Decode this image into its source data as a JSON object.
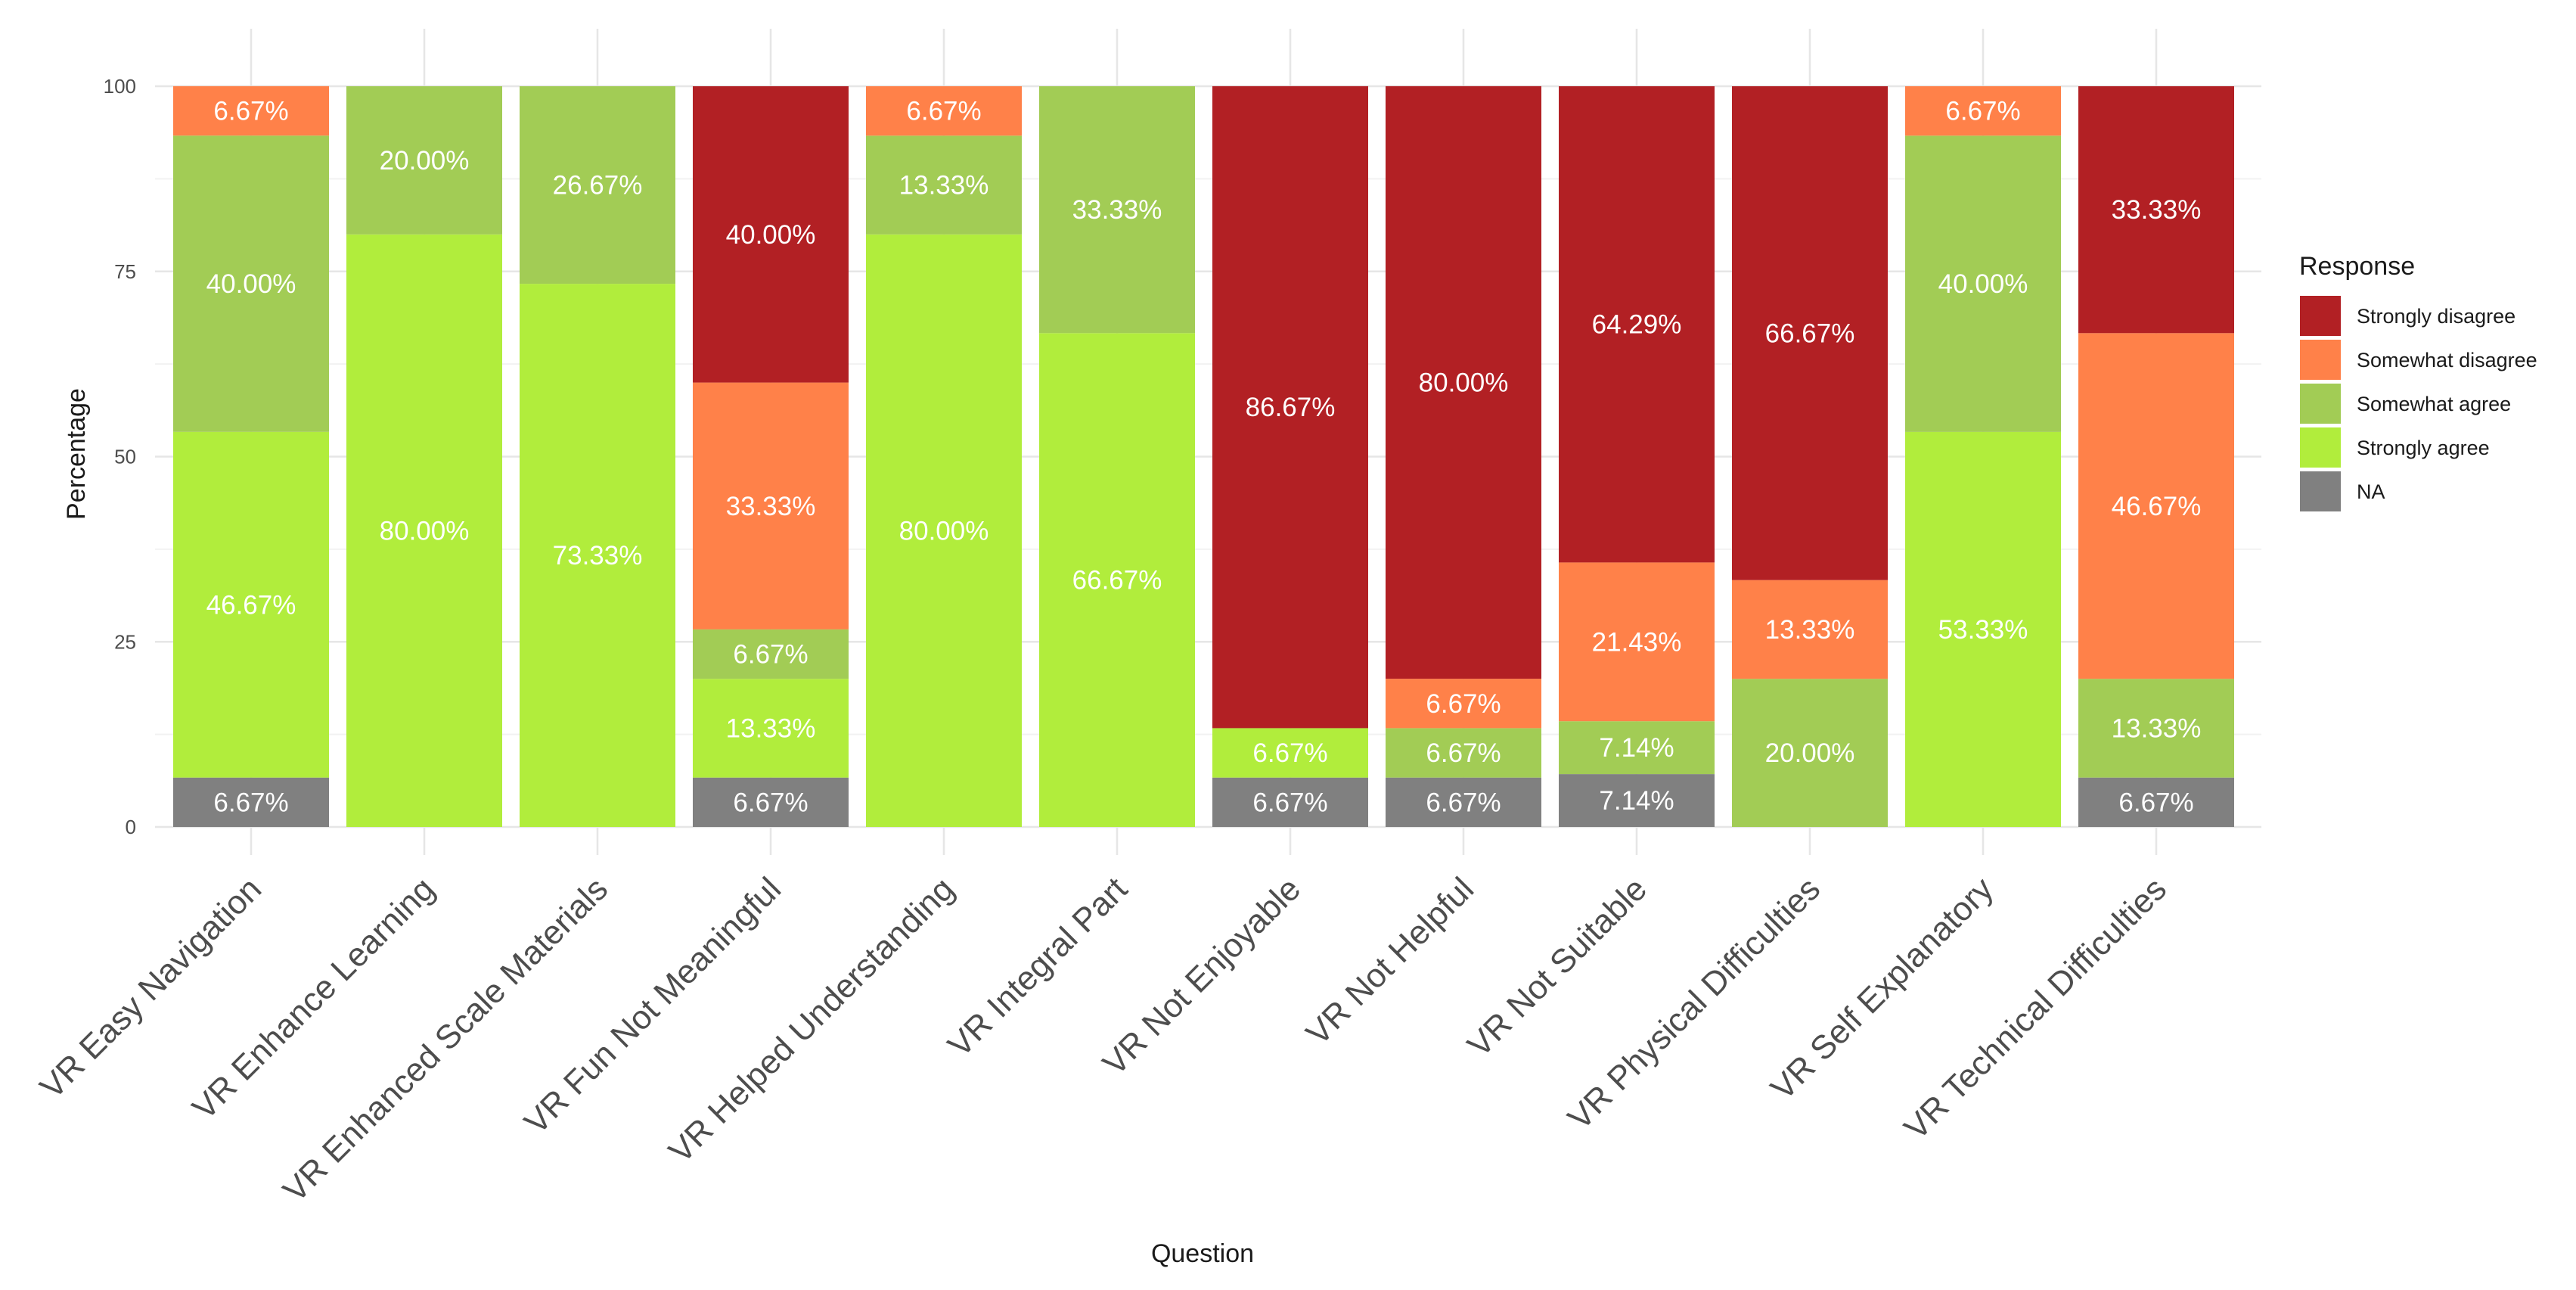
{
  "chart_data": {
    "type": "bar",
    "stacked": true,
    "xlabel": "Question",
    "ylabel": "Percentage",
    "ylim": [
      0,
      100
    ],
    "yticks": [
      0,
      25,
      50,
      75,
      100
    ],
    "grid": true,
    "legend": {
      "title": "Response",
      "position": "right"
    },
    "categories": [
      "VR Easy Navigation",
      "VR Enhance Learning",
      "VR Enhanced Scale Materials",
      "VR Fun Not Meaningful",
      "VR Helped Understanding",
      "VR Integral Part",
      "VR Not Enjoyable",
      "VR Not Helpful",
      "VR Not Suitable",
      "VR Physical Difficulties",
      "VR Self Explanatory",
      "VR Technical Difficulties"
    ],
    "series": [
      {
        "name": "Strongly disagree",
        "color": "#b22024",
        "values": [
          0,
          0,
          0,
          40.0,
          0,
          0,
          86.67,
          80.0,
          64.29,
          66.67,
          0,
          33.33
        ],
        "labels": [
          "",
          "",
          "",
          "40.00%",
          "",
          "",
          "86.67%",
          "80.00%",
          "64.29%",
          "66.67%",
          "",
          "33.33%"
        ]
      },
      {
        "name": "Somewhat disagree",
        "color": "#ff8149",
        "values": [
          6.67,
          0,
          0,
          33.33,
          6.67,
          0,
          0,
          6.67,
          21.43,
          13.33,
          6.67,
          46.67
        ],
        "labels": [
          "6.67%",
          "",
          "",
          "33.33%",
          "6.67%",
          "",
          "",
          "6.67%",
          "21.43%",
          "13.33%",
          "6.67%",
          "46.67%"
        ]
      },
      {
        "name": "Somewhat agree",
        "color": "#a2cc55",
        "values": [
          40.0,
          20.0,
          26.67,
          6.67,
          13.33,
          33.33,
          0,
          6.67,
          7.14,
          20.0,
          40.0,
          13.33
        ],
        "labels": [
          "40.00%",
          "20.00%",
          "26.67%",
          "6.67%",
          "13.33%",
          "33.33%",
          "",
          "6.67%",
          "7.14%",
          "20.00%",
          "40.00%",
          "13.33%"
        ]
      },
      {
        "name": "Strongly agree",
        "color": "#b1ed3c",
        "values": [
          46.67,
          80.0,
          73.33,
          13.33,
          80.0,
          66.67,
          6.67,
          0,
          0,
          0,
          53.33,
          0
        ],
        "labels": [
          "46.67%",
          "80.00%",
          "73.33%",
          "13.33%",
          "80.00%",
          "66.67%",
          "6.67%",
          "",
          "",
          "",
          "53.33%",
          ""
        ]
      },
      {
        "name": "NA",
        "color": "#808080",
        "values": [
          6.67,
          0,
          0,
          6.67,
          0,
          0,
          6.67,
          6.67,
          7.14,
          0,
          0,
          6.67
        ],
        "labels": [
          "6.67%",
          "",
          "",
          "6.67%",
          "",
          "",
          "6.67%",
          "6.67%",
          "7.14%",
          "",
          "",
          "6.67%"
        ]
      }
    ]
  }
}
